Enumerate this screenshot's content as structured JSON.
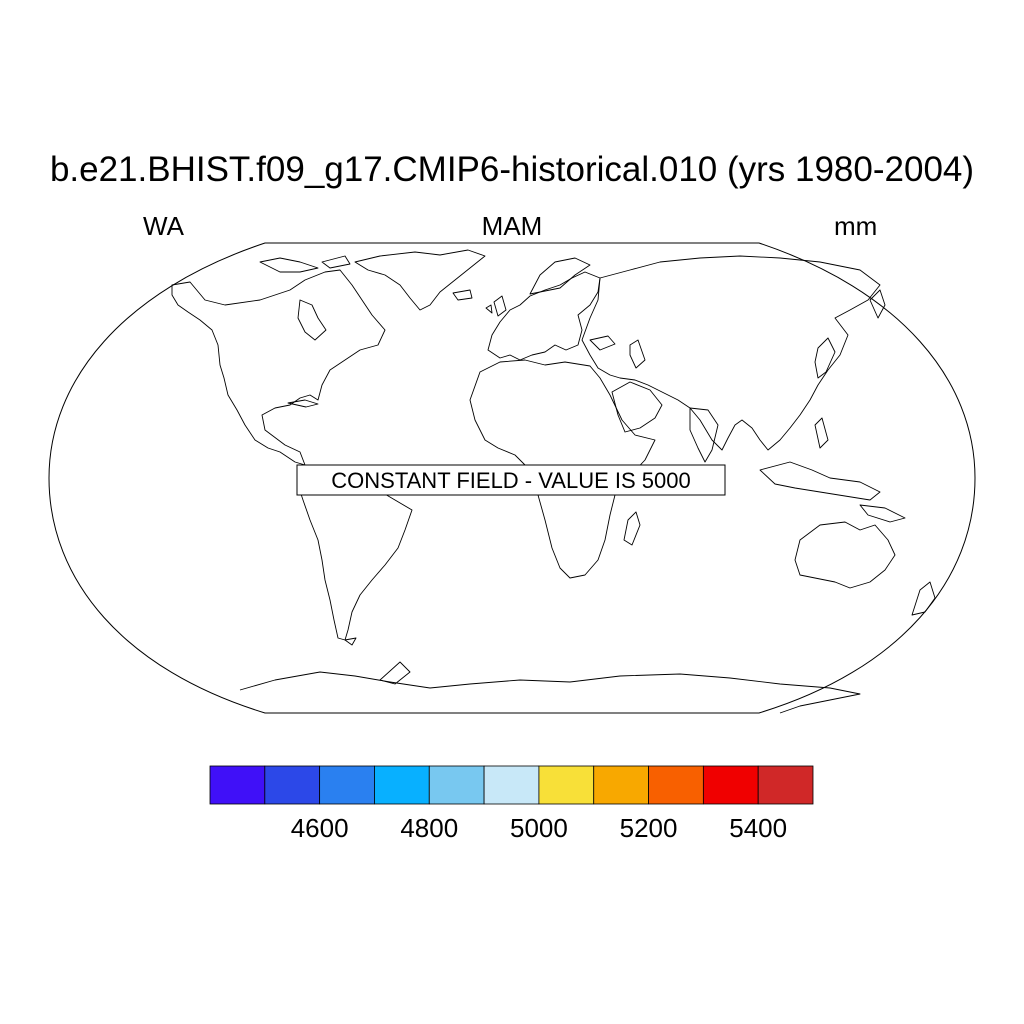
{
  "map": {
    "title": "b.e21.BHIST.f09_g17.CMIP6-historical.010 (yrs 1980-2004)",
    "left_label": "WA",
    "center_label": "MAM",
    "right_label": "mm",
    "projection": "Robinson",
    "constant_field_message": "CONSTANT FIELD - VALUE IS 5000"
  },
  "colorbar": {
    "colors": [
      "#4010f8",
      "#2c48e8",
      "#2a80f0",
      "#08b0ff",
      "#78c8f0",
      "#c8e8f8",
      "#f8e038",
      "#f8a800",
      "#f86000",
      "#f00000",
      "#d02828"
    ],
    "tick_labels": [
      "4600",
      "4800",
      "5000",
      "5200",
      "5400"
    ],
    "tick_values": [
      4600,
      4800,
      5000,
      5200,
      5400
    ],
    "levels": [
      4500,
      4600,
      4700,
      4800,
      4900,
      5000,
      5100,
      5200,
      5300,
      5400,
      5500
    ]
  }
}
